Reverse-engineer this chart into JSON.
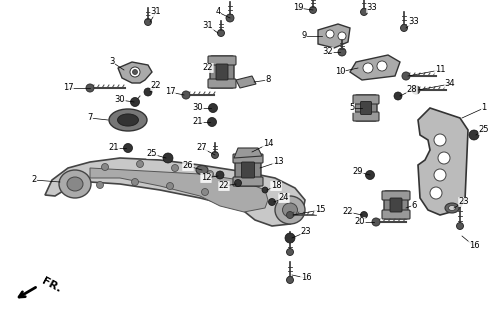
{
  "background_color": "#ffffff",
  "fig_width": 4.93,
  "fig_height": 3.2,
  "dpi": 100,
  "line_color": "#000000",
  "part_gray": "#888888",
  "part_dark": "#444444",
  "part_light": "#bbbbbb"
}
